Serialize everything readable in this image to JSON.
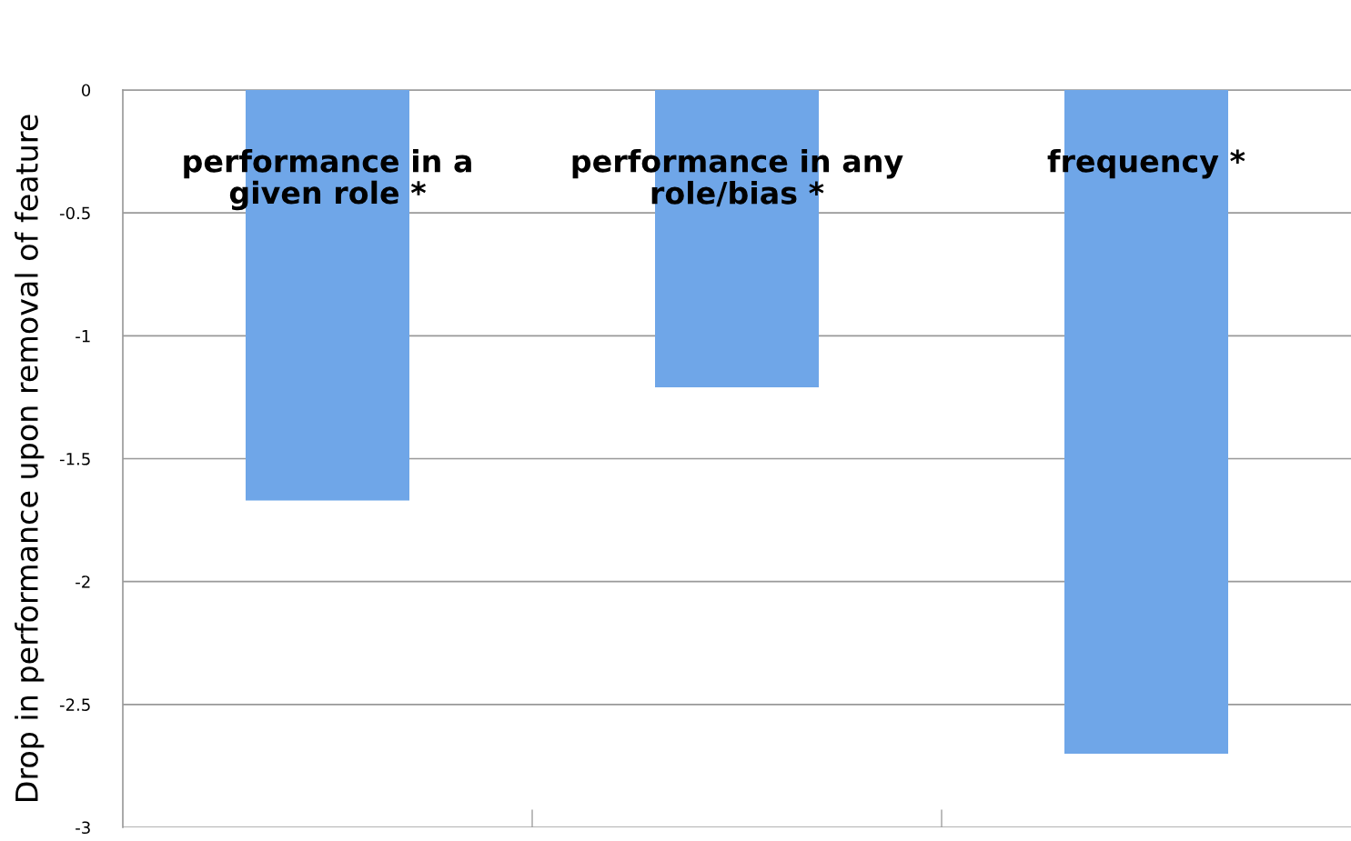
{
  "chart_data": {
    "type": "bar",
    "ylabel": "Drop in performance upon removal of feature",
    "categories": [
      "performance in a\ngiven role *",
      "performance in any\nrole/bias *",
      "frequency *"
    ],
    "values": [
      -1.67,
      -1.21,
      -2.7
    ],
    "color": "#6fa6e8",
    "ylim": [
      -3,
      0
    ],
    "yticks": [
      {
        "value": 0,
        "label": "0"
      },
      -0.5,
      -1,
      -1.5,
      -2,
      -2.5,
      -3
    ],
    "grid": "y",
    "legend": false
  }
}
